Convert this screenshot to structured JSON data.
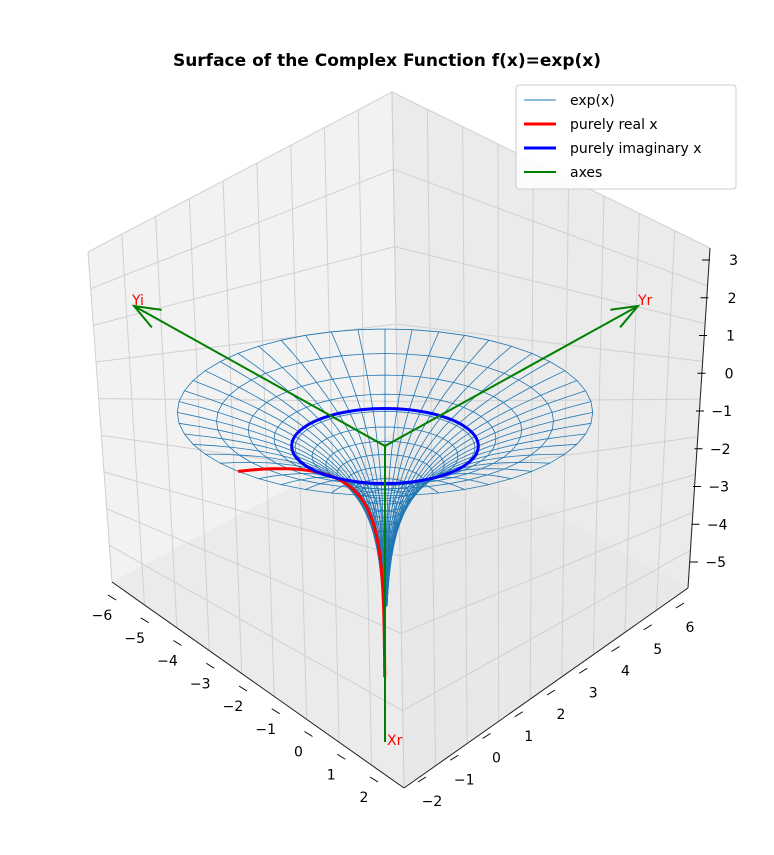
{
  "chart_data": {
    "type": "surface3d",
    "title": "Surface of the Complex Function f(x)=exp(x)",
    "view": "3D wireframe, isometric-style perspective",
    "axes": {
      "x": {
        "ticks": [
          "−6",
          "−5",
          "−4",
          "−3",
          "−2",
          "−1",
          "0",
          "1",
          "2"
        ],
        "range": [
          -6.5,
          2.5
        ]
      },
      "y": {
        "ticks": [
          "−2",
          "−1",
          "0",
          "1",
          "2",
          "3",
          "4",
          "5",
          "6"
        ],
        "range": [
          -2.3,
          6.8
        ]
      },
      "z": {
        "ticks": [
          "3",
          "2",
          "1",
          "0",
          "−1",
          "−2",
          "−3",
          "−4",
          "−5"
        ],
        "range": [
          -5.7,
          3.2
        ]
      }
    },
    "grid": true,
    "legend": {
      "position": "upper-right",
      "entries": [
        {
          "label": "exp(x)",
          "color": "#1f77b4",
          "style": "thin-line"
        },
        {
          "label": "purely real x",
          "color": "#ff0000",
          "style": "thick-line"
        },
        {
          "label": "purely imaginary x",
          "color": "#0000ff",
          "style": "thick-line"
        },
        {
          "label": "axes",
          "color": "#008000",
          "style": "line"
        }
      ]
    },
    "series": [
      {
        "name": "exp(x)",
        "kind": "wireframe surface",
        "radial_range": [
          0,
          2.2
        ],
        "log_radius_range": [
          -3.8,
          0.8
        ]
      },
      {
        "name": "purely real x",
        "kind": "curve",
        "t_range": [
          -5.5,
          0.8
        ]
      },
      {
        "name": "purely imaginary x",
        "kind": "circle",
        "radius": 1
      },
      {
        "name": "axes",
        "kind": "arrows"
      }
    ],
    "axis_labels": [
      "Yi",
      "Yr",
      "Xr"
    ],
    "colors": {
      "surface": "#1f77b4",
      "real_curve": "#ff0000",
      "imag_curve": "#0000ff",
      "axes": "#008000",
      "labels": "#ff0000"
    }
  }
}
